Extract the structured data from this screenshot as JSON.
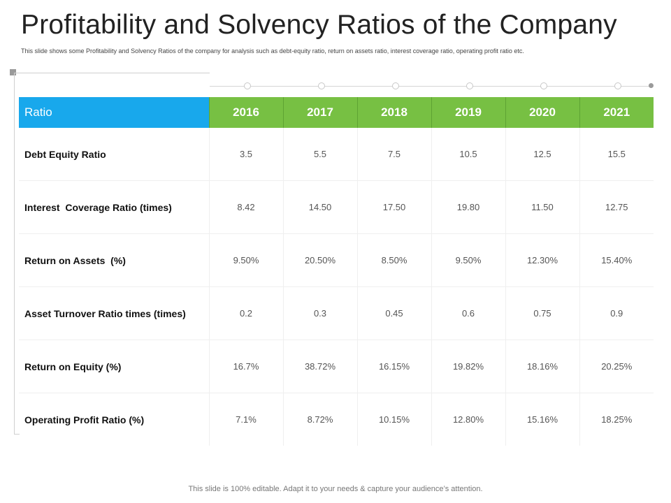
{
  "slide": {
    "title": "Profitability and Solvency Ratios of the Company",
    "subtitle": "This slide shows some Profitability and Solvency Ratios of the company for analysis such as debt-equity ratio, return on assets ratio, interest coverage ratio, operating profit ratio etc.",
    "footer": "This slide is 100% editable. Adapt it to your needs & capture your audience’s attention."
  },
  "colors": {
    "header_ratio_bg": "#18a8ec",
    "header_year_bg": "#77c043"
  },
  "table": {
    "header_label": "Ratio",
    "years": [
      "2016",
      "2017",
      "2018",
      "2019",
      "2020",
      "2021"
    ],
    "rows": [
      {
        "label": "Debt Equity Ratio",
        "values": [
          "3.5",
          "5.5",
          "7.5",
          "10.5",
          "12.5",
          "15.5"
        ]
      },
      {
        "label": "Interest  Coverage Ratio (times)",
        "values": [
          "8.42",
          "14.50",
          "17.50",
          "19.80",
          "11.50",
          "12.75"
        ]
      },
      {
        "label": "Return on Assets  (%)",
        "values": [
          "9.50%",
          "20.50%",
          "8.50%",
          "9.50%",
          "12.30%",
          "15.40%"
        ]
      },
      {
        "label": "Asset Turnover Ratio times (times)",
        "values": [
          "0.2",
          "0.3",
          "0.45",
          "0.6",
          "0.75",
          "0.9"
        ]
      },
      {
        "label": "Return on Equity (%)",
        "values": [
          "16.7%",
          "38.72%",
          "16.15%",
          "19.82%",
          "18.16%",
          "20.25%"
        ]
      },
      {
        "label": "Operating Profit Ratio (%)",
        "values": [
          "7.1%",
          "8.72%",
          "10.15%",
          "12.80%",
          "15.16%",
          "18.25%"
        ]
      }
    ]
  }
}
